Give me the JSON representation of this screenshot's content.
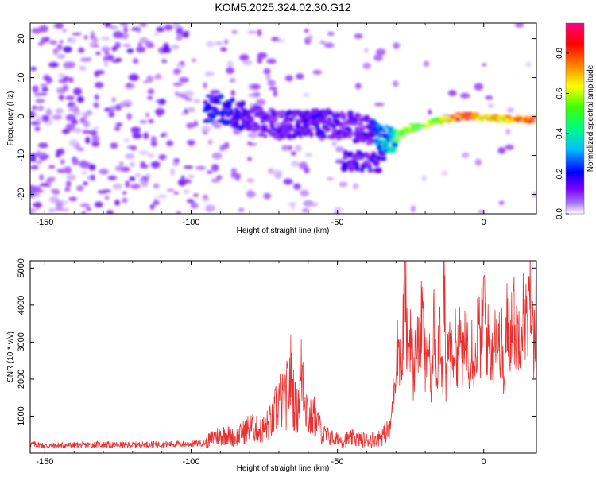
{
  "title": "KOM5.2025.324.02.30.G12",
  "chart_data": [
    {
      "type": "heatmap",
      "name": "spectrogram",
      "xlabel": "Height of straight line (km)",
      "ylabel": "Frequency (Hz)",
      "xlim": [
        -155,
        18
      ],
      "ylim": [
        -25,
        24
      ],
      "xticks": [
        -150,
        -100,
        -50,
        0
      ],
      "yticks": [
        -20,
        -10,
        0,
        10,
        20
      ],
      "colorbar": {
        "label": "Normalized spectral amplitude",
        "range": [
          0,
          0.95
        ],
        "ticks": [
          "0.0",
          "0.2",
          "0.4",
          "0.6",
          "0.8"
        ],
        "tick_values": [
          0,
          0.2,
          0.4,
          0.6,
          0.8
        ],
        "colors": [
          "#ffffff",
          "#7f00ff",
          "#0000ff",
          "#00ffff",
          "#00ff00",
          "#ffff00",
          "#ff7f00",
          "#ff0000",
          "#ff0080"
        ]
      },
      "ridge": [
        {
          "x": -90,
          "freq": 2.0,
          "amp": 0.3
        },
        {
          "x": -80,
          "freq": -0.5,
          "amp": 0.2
        },
        {
          "x": -70,
          "freq": -2.5,
          "amp": 0.2
        },
        {
          "x": -60,
          "freq": -1.5,
          "amp": 0.25
        },
        {
          "x": -50,
          "freq": -2.0,
          "amp": 0.2
        },
        {
          "x": -40,
          "freq": -3.5,
          "amp": 0.2
        },
        {
          "x": -32,
          "freq": -6.0,
          "amp": 0.5
        },
        {
          "x": -25,
          "freq": -3.0,
          "amp": 0.6
        },
        {
          "x": -15,
          "freq": -1.0,
          "amp": 0.6
        },
        {
          "x": -8,
          "freq": 0.0,
          "amp": 0.9
        },
        {
          "x": 0,
          "freq": 0.0,
          "amp": 0.7
        },
        {
          "x": 10,
          "freq": -1.0,
          "amp": 0.75
        },
        {
          "x": 18,
          "freq": -0.5,
          "amp": 0.8
        }
      ]
    },
    {
      "type": "line",
      "name": "snr",
      "xlabel": "Height of straight line (km)",
      "ylabel": "SNR (10 * v/v)",
      "xlim": [
        -155,
        18
      ],
      "ylim": [
        0,
        5200
      ],
      "xticks": [
        -150,
        -100,
        -50,
        0
      ],
      "yticks": [
        1000,
        2000,
        3000,
        4000,
        5000
      ],
      "color": "#e83030",
      "series": [
        {
          "name": "SNR",
          "x": [
            -155,
            -150,
            -140,
            -130,
            -120,
            -110,
            -100,
            -95,
            -92,
            -88,
            -85,
            -80,
            -76,
            -72,
            -70,
            -68,
            -66,
            -64,
            -62,
            -60,
            -58,
            -55,
            -50,
            -45,
            -40,
            -35,
            -32,
            -31,
            -30,
            -29,
            -28,
            -27,
            -26,
            -25,
            -24,
            -23,
            -22,
            -21,
            -20,
            -19,
            -18,
            -17,
            -16,
            -15,
            -14,
            -13.5,
            -13,
            -12,
            -11,
            -10,
            -9,
            -8,
            -7,
            -6,
            -5,
            -4,
            -3,
            -2,
            -1,
            0,
            1,
            2,
            3,
            4,
            5,
            6,
            7,
            8,
            9,
            10,
            11,
            12,
            13,
            14,
            15,
            16,
            17,
            18
          ],
          "values": [
            250,
            200,
            210,
            230,
            220,
            240,
            250,
            280,
            450,
            500,
            400,
            700,
            600,
            900,
            1500,
            1300,
            2100,
            1000,
            2300,
            900,
            1000,
            500,
            350,
            400,
            350,
            450,
            650,
            1500,
            2500,
            3000,
            2000,
            4900,
            2400,
            3500,
            1900,
            3200,
            2700,
            3800,
            2200,
            3100,
            1500,
            3500,
            2300,
            3600,
            2000,
            5200,
            1500,
            3200,
            2500,
            3000,
            2700,
            3100,
            2400,
            3300,
            2600,
            3000,
            2200,
            3500,
            2900,
            4300,
            3100,
            3000,
            2500,
            3600,
            2800,
            3200,
            1700,
            3600,
            3200,
            3900,
            3100,
            3400,
            3600,
            3900,
            3300,
            4500,
            3000,
            4000
          ]
        }
      ]
    }
  ]
}
